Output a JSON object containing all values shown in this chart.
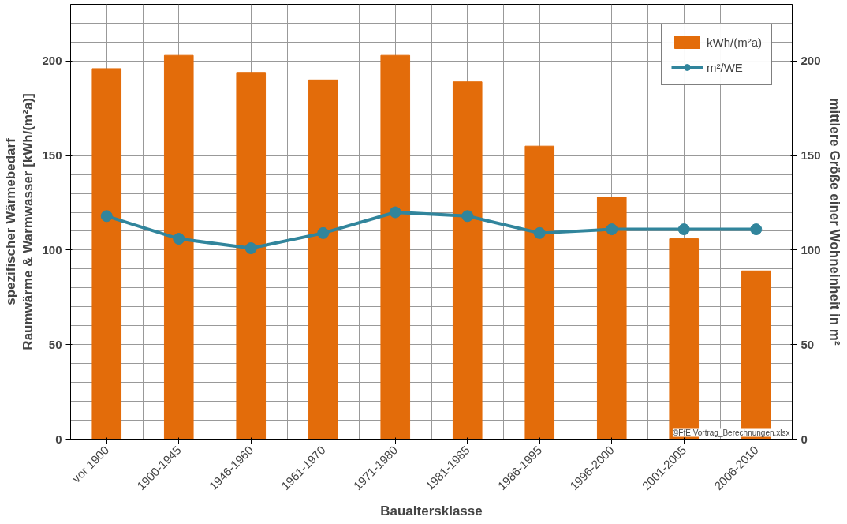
{
  "chart_data": {
    "type": "bar",
    "xlabel": "Baualtersklasse",
    "ylabel": "spezifischer Wärmebedarf\nRaumwärme & Warmwasser [kWh/(m²a)]",
    "y2label": "mittlere Größe einer Wohneinheit in m²",
    "categories": [
      "vor 1900",
      "1900-1945",
      "1946-1960",
      "1961-1970",
      "1971-1980",
      "1981-1985",
      "1986-1995",
      "1996-2000",
      "2001-2005",
      "2006-2010"
    ],
    "series": [
      {
        "name": "kWh/(m²a)",
        "color": "#e36c0a",
        "values": [
          196,
          203,
          194,
          190,
          203,
          189,
          155,
          128,
          106,
          89
        ]
      },
      {
        "name": "m²/WE",
        "type": "line",
        "axis": "y2",
        "color": "#31859c",
        "marker": "circle",
        "values": [
          118,
          106,
          101,
          109,
          120,
          118,
          109,
          111,
          111,
          111
        ]
      }
    ],
    "ylim": [
      0,
      230
    ],
    "yticks": [
      0,
      50,
      100,
      150,
      200
    ],
    "y2lim": [
      0,
      230
    ],
    "y2ticks": [
      0,
      50,
      100,
      150,
      200
    ],
    "grid": true,
    "legend": "top right",
    "annotations": [
      "©FfE Vortrag_Berechnungen.xlsx"
    ]
  }
}
